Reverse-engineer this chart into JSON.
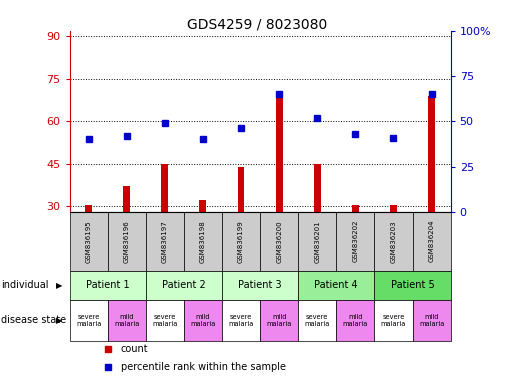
{
  "title": "GDS4259 / 8023080",
  "samples": [
    "GSM836195",
    "GSM836196",
    "GSM836197",
    "GSM836198",
    "GSM836199",
    "GSM836200",
    "GSM836201",
    "GSM836202",
    "GSM836203",
    "GSM836204"
  ],
  "counts": [
    30.5,
    37,
    45,
    32,
    44,
    69,
    45,
    30.5,
    30.5,
    69
  ],
  "percentile_ranks": [
    40,
    42,
    49,
    40,
    46,
    65,
    52,
    43,
    41,
    65
  ],
  "ylim_left": [
    28,
    92
  ],
  "ylim_right": [
    0,
    100
  ],
  "yticks_left": [
    30,
    45,
    60,
    75,
    90
  ],
  "yticks_right": [
    0,
    25,
    50,
    75,
    100
  ],
  "ytick_labels_right": [
    "0",
    "25",
    "50",
    "75",
    "100%"
  ],
  "patients": [
    {
      "label": "Patient 1",
      "cols": [
        0,
        1
      ],
      "color": "#ccffcc"
    },
    {
      "label": "Patient 2",
      "cols": [
        2,
        3
      ],
      "color": "#ccffcc"
    },
    {
      "label": "Patient 3",
      "cols": [
        4,
        5
      ],
      "color": "#ccffcc"
    },
    {
      "label": "Patient 4",
      "cols": [
        6,
        7
      ],
      "color": "#99ee99"
    },
    {
      "label": "Patient 5",
      "cols": [
        8,
        9
      ],
      "color": "#66dd66"
    }
  ],
  "disease_states": [
    {
      "label": "severe\nmalaria",
      "col": 0,
      "color": "#ffffff"
    },
    {
      "label": "mild\nmalaria",
      "col": 1,
      "color": "#ee88ee"
    },
    {
      "label": "severe\nmalaria",
      "col": 2,
      "color": "#ffffff"
    },
    {
      "label": "mild\nmalaria",
      "col": 3,
      "color": "#ee88ee"
    },
    {
      "label": "severe\nmalaria",
      "col": 4,
      "color": "#ffffff"
    },
    {
      "label": "mild\nmalaria",
      "col": 5,
      "color": "#ee88ee"
    },
    {
      "label": "severe\nmalaria",
      "col": 6,
      "color": "#ffffff"
    },
    {
      "label": "mild\nmalaria",
      "col": 7,
      "color": "#ee88ee"
    },
    {
      "label": "severe\nmalaria",
      "col": 8,
      "color": "#ffffff"
    },
    {
      "label": "mild\nmalaria",
      "col": 9,
      "color": "#ee88ee"
    }
  ],
  "bar_color": "#cc0000",
  "dot_color": "#0000cc",
  "bar_width": 0.18,
  "bg_color": "#ffffff",
  "tick_color_left": "#cc0000",
  "tick_color_right": "#0000cc",
  "sample_label_bg": "#cccccc",
  "row_label_fontsize": 7,
  "sample_fontsize": 5,
  "patient_fontsize": 7,
  "disease_fontsize": 4.8,
  "legend_fontsize": 7,
  "title_fontsize": 10
}
